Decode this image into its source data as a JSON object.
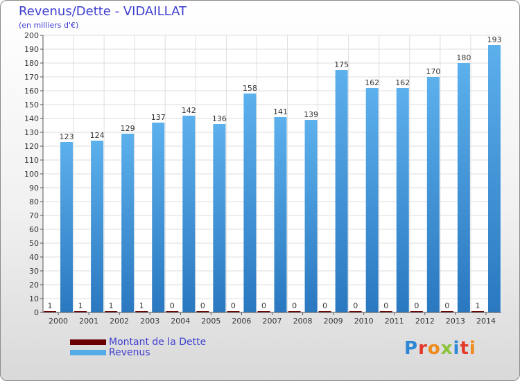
{
  "title": "Revenus/Dette - VIDAILLAT",
  "subtitle": "(en milliers d'€)",
  "logo": "Proxiti",
  "colors": {
    "debt": "#6b0000",
    "revenue": "#55aae8",
    "revenue_dark": "#2f7fc6",
    "text": "#3e3ed0"
  },
  "legend": [
    {
      "label": "Montant de la Dette",
      "color": "#6b0000"
    },
    {
      "label": "Revenus",
      "color": "#55aae8"
    }
  ],
  "chart_data": {
    "type": "bar",
    "title": "Revenus/Dette - VIDAILLAT",
    "subtitle": "(en milliers d'€)",
    "categories": [
      "2000",
      "2001",
      "2002",
      "2003",
      "2004",
      "2005",
      "2006",
      "2007",
      "2008",
      "2009",
      "2010",
      "2011",
      "2012",
      "2013",
      "2014"
    ],
    "series": [
      {
        "name": "Montant de la Dette",
        "values": [
          1,
          1,
          1,
          1,
          0,
          0,
          0,
          0,
          0,
          0,
          0,
          0,
          0,
          0,
          1
        ]
      },
      {
        "name": "Revenus",
        "values": [
          123,
          124,
          129,
          137,
          142,
          136,
          158,
          141,
          139,
          175,
          162,
          162,
          170,
          180,
          193
        ]
      }
    ],
    "ylim": [
      0,
      200
    ],
    "yticks": [
      0,
      10,
      20,
      30,
      40,
      50,
      60,
      70,
      80,
      90,
      100,
      110,
      120,
      130,
      140,
      150,
      160,
      170,
      180,
      190,
      200
    ],
    "grid": true,
    "legend_position": "bottom-left"
  }
}
